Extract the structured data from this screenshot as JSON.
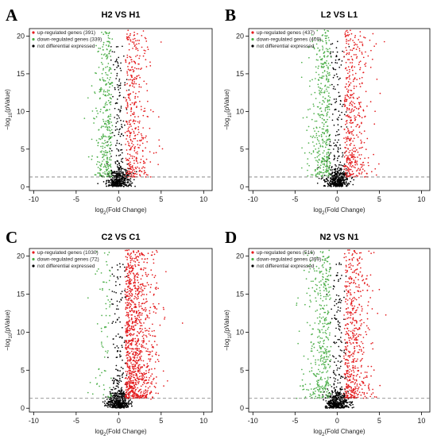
{
  "figure": {
    "panels": [
      {
        "letter": "A",
        "title": "H2 VS H1"
      },
      {
        "letter": "B",
        "title": "L2 VS L1"
      },
      {
        "letter": "C",
        "title": "C2 VS C1"
      },
      {
        "letter": "D",
        "title": "N2 VS N1"
      }
    ]
  },
  "chart_data": [
    {
      "type": "scatter",
      "title": "H2 VS H1",
      "xlabel": "log2(Fold Change)",
      "ylabel": "−log10(pValue)",
      "xlim": [
        -10.5,
        11
      ],
      "ylim": [
        -0.5,
        21
      ],
      "xticks": [
        -10,
        -5,
        0,
        5,
        10
      ],
      "yticks": [
        0,
        5,
        10,
        15,
        20
      ],
      "threshold_line": 1.3,
      "legend_position": "top-left",
      "series": [
        {
          "name": "up-regulated genes (391)",
          "color": "#e41a1c",
          "count": 391
        },
        {
          "name": "down-regulated genes (339)",
          "color": "#4daf4a",
          "count": 339
        },
        {
          "name": "not differential expressed",
          "color": "#000000"
        }
      ],
      "spread": {
        "up": 1.7,
        "down": 1.2,
        "outliers": [
          [
            -2.0,
            20.5
          ],
          [
            2.2,
            20.3
          ],
          [
            4.8,
            5.4
          ],
          [
            -3.6,
            11.8
          ]
        ]
      }
    },
    {
      "type": "scatter",
      "title": "L2 VS L1",
      "xlabel": "log2(Fold Change)",
      "ylabel": "−log10(pValue)",
      "xlim": [
        -10.5,
        11
      ],
      "ylim": [
        -0.5,
        21
      ],
      "xticks": [
        -10,
        -5,
        0,
        5,
        10
      ],
      "yticks": [
        0,
        5,
        10,
        15,
        20
      ],
      "threshold_line": 1.3,
      "legend_position": "top-left",
      "series": [
        {
          "name": "up-regulated genes (437)",
          "color": "#e41a1c",
          "count": 437
        },
        {
          "name": "down-regulated genes (409)",
          "color": "#4daf4a",
          "count": 409
        },
        {
          "name": "not differential expressed",
          "color": "#000000"
        }
      ],
      "spread": {
        "up": 1.8,
        "down": 1.5,
        "outliers": [
          [
            -4.2,
            16.5
          ],
          [
            5.1,
            12.4
          ],
          [
            -1.5,
            20.8
          ],
          [
            4.1,
            2.0
          ]
        ]
      }
    },
    {
      "type": "scatter",
      "title": "C2 VS C1",
      "xlabel": "log2(Fold Change)",
      "ylabel": "−log10(pValue)",
      "xlim": [
        -10.5,
        11
      ],
      "ylim": [
        -0.5,
        21
      ],
      "xticks": [
        -10,
        -5,
        0,
        5,
        10
      ],
      "yticks": [
        0,
        5,
        10,
        15,
        20
      ],
      "threshold_line": 1.3,
      "legend_position": "top-left",
      "series": [
        {
          "name": "up-regulated genes (1030)",
          "color": "#e41a1c",
          "count": 1030
        },
        {
          "name": "down-regulated genes (72)",
          "color": "#4daf4a",
          "count": 72
        },
        {
          "name": "not differential expressed",
          "color": "#000000"
        }
      ],
      "spread": {
        "up": 2.0,
        "down": 1.3,
        "outliers": [
          [
            4.6,
            6.4
          ],
          [
            -3.6,
            14.5
          ],
          [
            1.2,
            20.8
          ],
          [
            3.8,
            1.2
          ]
        ]
      }
    },
    {
      "type": "scatter",
      "title": "N2 VS N1",
      "xlabel": "log2(Fold Change)",
      "ylabel": "−log10(pValue)",
      "xlim": [
        -10.5,
        11
      ],
      "ylim": [
        -0.5,
        21
      ],
      "xticks": [
        -10,
        -5,
        0,
        5,
        10
      ],
      "yticks": [
        0,
        5,
        10,
        15,
        20
      ],
      "threshold_line": 1.3,
      "legend_position": "top-left",
      "series": [
        {
          "name": "up-regulated genes (516)",
          "color": "#e41a1c",
          "count": 516
        },
        {
          "name": "down-regulated genes (399)",
          "color": "#4daf4a",
          "count": 399
        },
        {
          "name": "not differential expressed",
          "color": "#000000"
        }
      ],
      "spread": {
        "up": 1.9,
        "down": 1.8,
        "outliers": [
          [
            -4.8,
            13.8
          ],
          [
            5.0,
            15.6
          ],
          [
            1.4,
            20.4
          ],
          [
            -3.2,
            18.9
          ]
        ]
      }
    }
  ]
}
